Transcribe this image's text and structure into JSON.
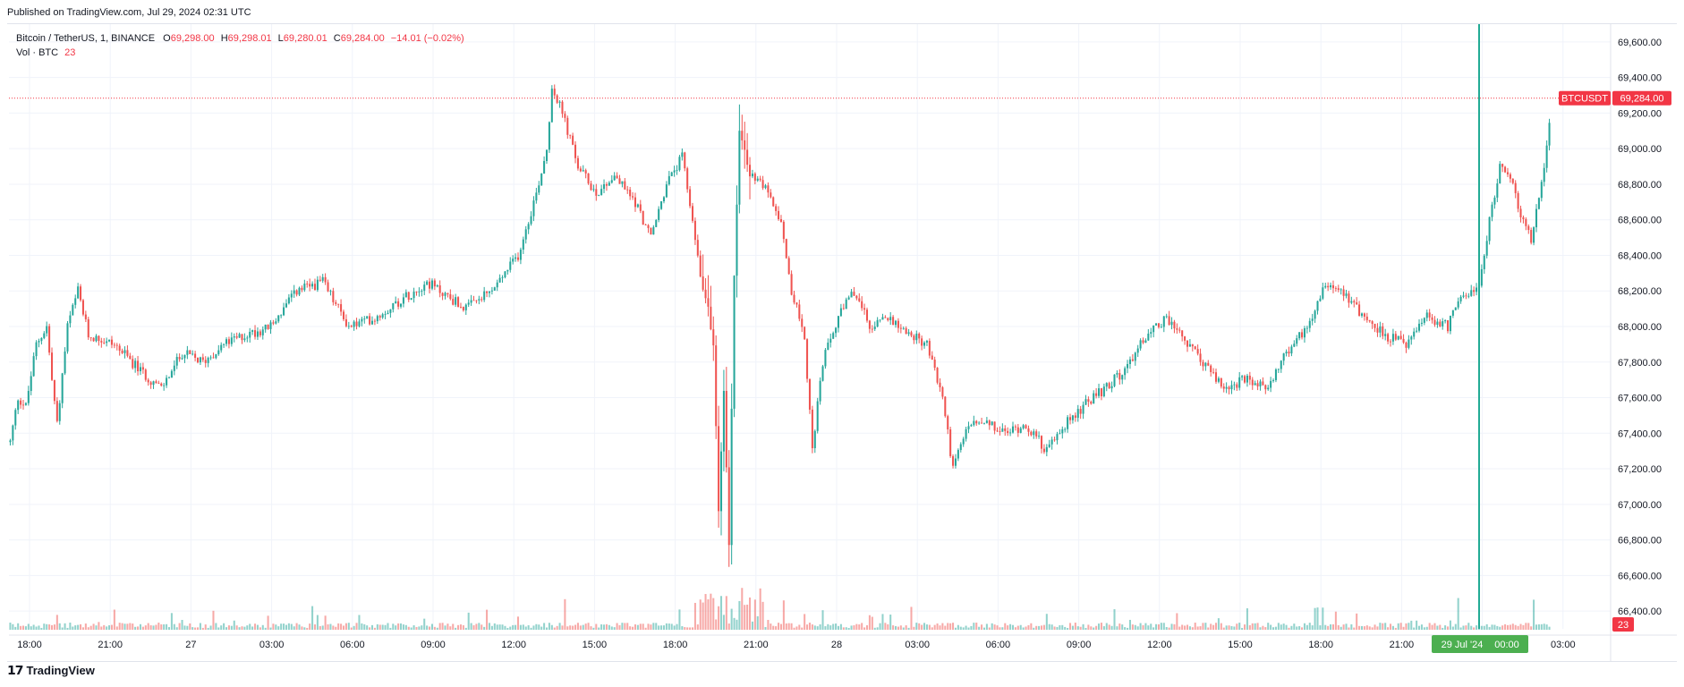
{
  "published_text": "Published on TradingView.com, Jul 29, 2024 02:31 UTC",
  "legend": {
    "symbol": "Bitcoin / TetherUS, 1, BINANCE",
    "o_label": "O",
    "o_value": "69,298.00",
    "h_label": "H",
    "h_value": "69,298.01",
    "l_label": "L",
    "l_value": "69,280.01",
    "c_label": "C",
    "c_value": "69,284.00",
    "change": "−14.01 (−0.02%)",
    "vol_label": "Vol · BTC",
    "vol_value": "23"
  },
  "price_badge": {
    "ticker": "BTCUSDT",
    "price": "69,284.00"
  },
  "volume_badge": "23",
  "crosshair_label": {
    "date": "29 Jul '24",
    "time": "00:00"
  },
  "footer_brand": "TradingView",
  "colors": {
    "up": "#26a69a",
    "down": "#ef5350",
    "crosshair": "#22ab94",
    "badge_red": "#f23645",
    "badge_green": "#4caf50"
  },
  "chart_data": {
    "type": "line",
    "series_kind": "candlestick_with_volume",
    "ylim": [
      66300,
      69700
    ],
    "y_ticks": [
      "69,600.00",
      "69,400.00",
      "69,200.00",
      "69,000.00",
      "68,800.00",
      "68,600.00",
      "68,400.00",
      "68,200.00",
      "68,000.00",
      "67,800.00",
      "67,600.00",
      "67,400.00",
      "67,200.00",
      "67,000.00",
      "66,800.00",
      "66,600.00",
      "66,400.00"
    ],
    "x_ticks": [
      "18:00",
      "21:00",
      "27",
      "03:00",
      "06:00",
      "09:00",
      "12:00",
      "15:00",
      "18:00",
      "21:00",
      "28",
      "03:00",
      "06:00",
      "09:00",
      "12:00",
      "15:00",
      "18:00",
      "21:00",
      "00:00",
      "03:00"
    ],
    "last_price": 69284.0,
    "keypoints_price": [
      [
        0,
        67350
      ],
      [
        3,
        67600
      ],
      [
        6,
        67550
      ],
      [
        10,
        67900
      ],
      [
        14,
        68000
      ],
      [
        16,
        67700
      ],
      [
        18,
        67450
      ],
      [
        22,
        68000
      ],
      [
        26,
        68200
      ],
      [
        30,
        67950
      ],
      [
        40,
        67900
      ],
      [
        50,
        67750
      ],
      [
        58,
        67650
      ],
      [
        66,
        67850
      ],
      [
        74,
        67800
      ],
      [
        82,
        67900
      ],
      [
        90,
        67950
      ],
      [
        100,
        68000
      ],
      [
        110,
        68200
      ],
      [
        120,
        68250
      ],
      [
        130,
        68000
      ],
      [
        140,
        68050
      ],
      [
        150,
        68150
      ],
      [
        160,
        68250
      ],
      [
        175,
        68100
      ],
      [
        185,
        68200
      ],
      [
        195,
        68400
      ],
      [
        202,
        68750
      ],
      [
        206,
        69000
      ],
      [
        208,
        69350
      ],
      [
        212,
        69200
      ],
      [
        218,
        68900
      ],
      [
        225,
        68750
      ],
      [
        232,
        68850
      ],
      [
        240,
        68700
      ],
      [
        246,
        68500
      ],
      [
        252,
        68800
      ],
      [
        258,
        68950
      ],
      [
        262,
        68600
      ],
      [
        265,
        68300
      ],
      [
        268,
        68100
      ],
      [
        270,
        67900
      ],
      [
        272,
        66950
      ],
      [
        274,
        67650
      ],
      [
        276,
        66800
      ],
      [
        278,
        68300
      ],
      [
        280,
        69100
      ],
      [
        284,
        68850
      ],
      [
        290,
        68800
      ],
      [
        296,
        68600
      ],
      [
        300,
        68200
      ],
      [
        305,
        67950
      ],
      [
        308,
        67300
      ],
      [
        312,
        67800
      ],
      [
        318,
        68050
      ],
      [
        324,
        68200
      ],
      [
        330,
        68000
      ],
      [
        338,
        68050
      ],
      [
        346,
        67950
      ],
      [
        352,
        67900
      ],
      [
        358,
        67600
      ],
      [
        362,
        67200
      ],
      [
        368,
        67450
      ],
      [
        375,
        67450
      ],
      [
        382,
        67400
      ],
      [
        390,
        67450
      ],
      [
        398,
        67300
      ],
      [
        405,
        67450
      ],
      [
        412,
        67550
      ],
      [
        420,
        67650
      ],
      [
        428,
        67750
      ],
      [
        436,
        67950
      ],
      [
        444,
        68050
      ],
      [
        452,
        67900
      ],
      [
        458,
        67800
      ],
      [
        466,
        67650
      ],
      [
        474,
        67700
      ],
      [
        482,
        67650
      ],
      [
        490,
        67850
      ],
      [
        498,
        68000
      ],
      [
        505,
        68250
      ],
      [
        512,
        68200
      ],
      [
        520,
        68050
      ],
      [
        528,
        67950
      ],
      [
        536,
        67900
      ],
      [
        544,
        68050
      ],
      [
        552,
        68000
      ],
      [
        558,
        68200
      ],
      [
        564,
        68200
      ],
      [
        568,
        68600
      ],
      [
        572,
        68900
      ],
      [
        576,
        68850
      ],
      [
        580,
        68600
      ],
      [
        584,
        68500
      ],
      [
        588,
        68800
      ],
      [
        592,
        69280
      ]
    ],
    "n_candles": 592
  }
}
